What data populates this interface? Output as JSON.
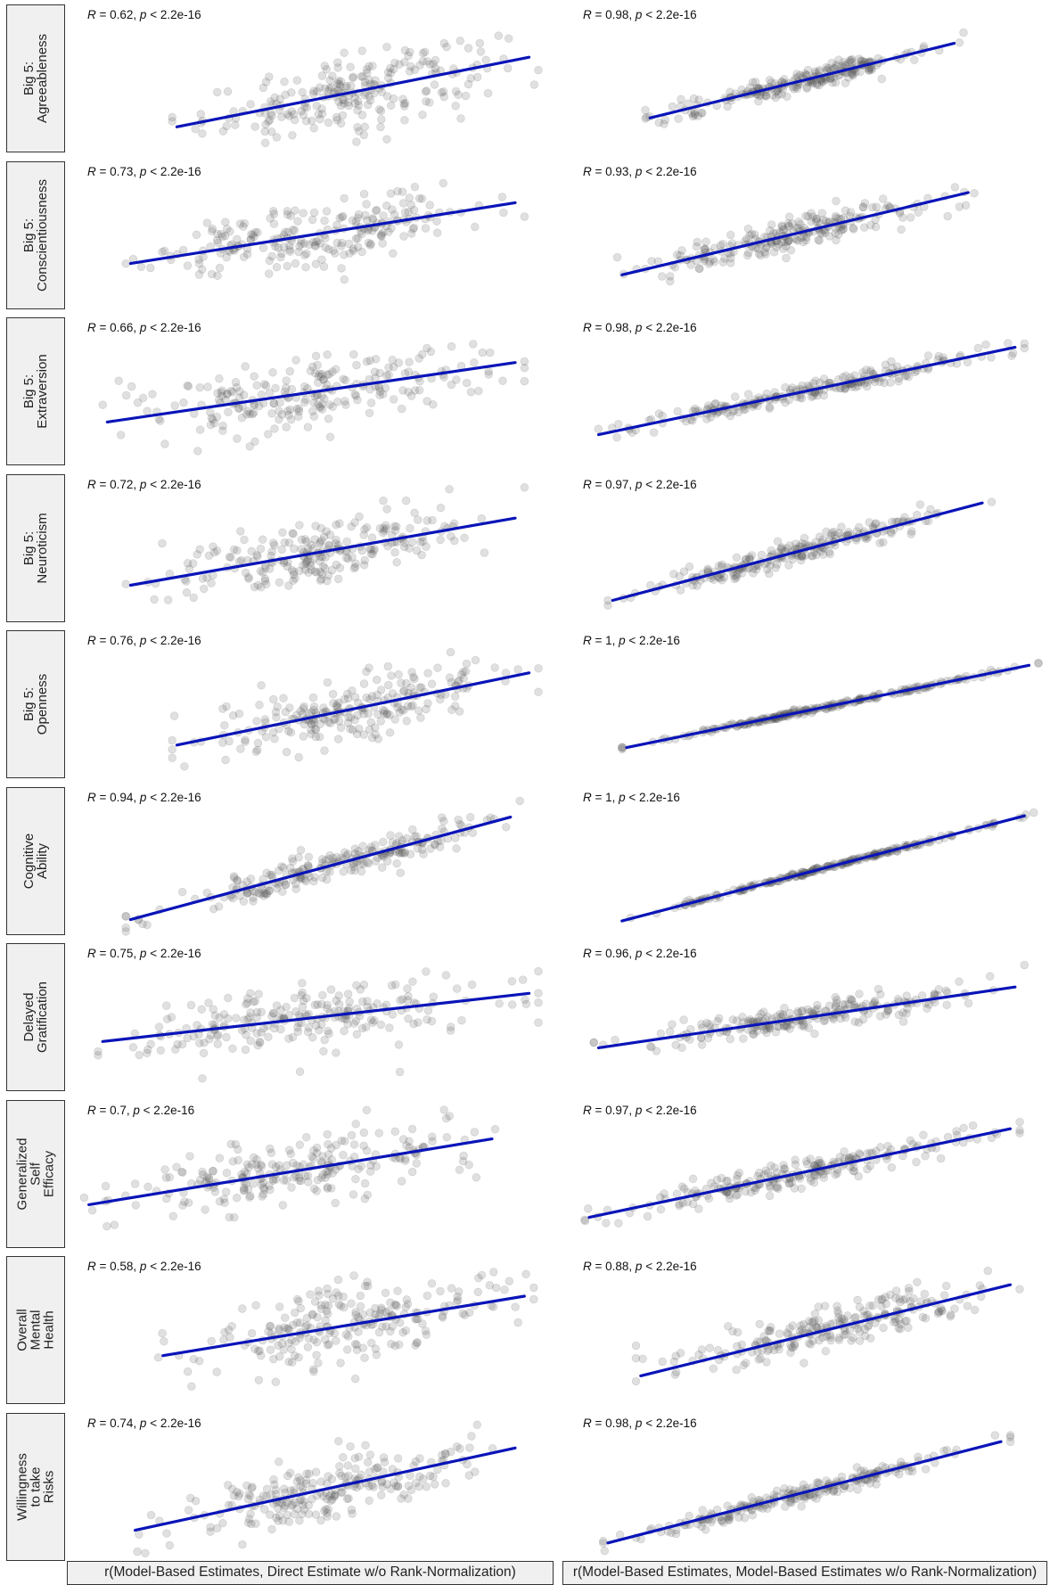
{
  "columns": [
    "r(Model-Based Estimates, Direct Estimate w/o Rank-Normalization)",
    "r(Model-Based Estimates, Model-Based Estimates w/o Rank-Normalization)"
  ],
  "rows": [
    "Big 5:\nAgreeableness",
    "Big 5:\nConscientiousness",
    "Big 5:\nExtraversion",
    "Big 5:\nNeuroticism",
    "Big 5:\nOpenness",
    "Cognitive\nAbility",
    "Delayed\nGratification",
    "Generalized\nSelf\nEfficacy",
    "Overall\nMental\nHealth",
    "Willingness\nto take\nRisks"
  ],
  "colors": {
    "point": "#555555",
    "line": "#0a14b8",
    "strip_bg": "#f0f0f0"
  },
  "chart_data": {
    "type": "scatter",
    "facets": [
      {
        "row": "Big 5:\nAgreeableness",
        "col": 1,
        "R": "0.62",
        "p": "2.2e-16",
        "r": 0.62,
        "line": [
          [
            0.22,
            0.16
          ],
          [
            0.98,
            0.71
          ]
        ]
      },
      {
        "row": "Big 5:\nAgreeableness",
        "col": 2,
        "R": "0.98",
        "p": "2.2e-16",
        "r": 0.98,
        "line": [
          [
            0.17,
            0.23
          ],
          [
            0.82,
            0.82
          ]
        ]
      },
      {
        "row": "Big 5:\nConscientiousness",
        "col": 1,
        "R": "0.73",
        "p": "2.2e-16",
        "r": 0.73,
        "line": [
          [
            0.12,
            0.32
          ],
          [
            0.95,
            0.8
          ]
        ]
      },
      {
        "row": "Big 5:\nConscientiousness",
        "col": 2,
        "R": "0.93",
        "p": "2.2e-16",
        "r": 0.93,
        "line": [
          [
            0.11,
            0.23
          ],
          [
            0.85,
            0.88
          ]
        ]
      },
      {
        "row": "Big 5:\nExtraversion",
        "col": 1,
        "R": "0.66",
        "p": "2.2e-16",
        "r": 0.66,
        "line": [
          [
            0.07,
            0.3
          ],
          [
            0.95,
            0.77
          ]
        ]
      },
      {
        "row": "Big 5:\nExtraversion",
        "col": 2,
        "R": "0.98",
        "p": "2.2e-16",
        "r": 0.98,
        "line": [
          [
            0.06,
            0.2
          ],
          [
            0.95,
            0.89
          ]
        ]
      },
      {
        "row": "Big 5:\nNeuroticism",
        "col": 1,
        "R": "0.72",
        "p": "2.2e-16",
        "r": 0.72,
        "line": [
          [
            0.12,
            0.25
          ],
          [
            0.95,
            0.78
          ]
        ]
      },
      {
        "row": "Big 5:\nNeuroticism",
        "col": 2,
        "R": "0.97",
        "p": "2.2e-16",
        "r": 0.97,
        "line": [
          [
            0.09,
            0.13
          ],
          [
            0.88,
            0.9
          ]
        ]
      },
      {
        "row": "Big 5:\nOpenness",
        "col": 1,
        "R": "0.76",
        "p": "2.2e-16",
        "r": 0.76,
        "line": [
          [
            0.22,
            0.22
          ],
          [
            0.98,
            0.79
          ]
        ]
      },
      {
        "row": "Big 5:\nOpenness",
        "col": 2,
        "R": "1",
        "p": "2.2e-16",
        "r": 1.0,
        "line": [
          [
            0.12,
            0.2
          ],
          [
            0.98,
            0.85
          ]
        ]
      },
      {
        "row": "Cognitive\nAbility",
        "col": 1,
        "R": "0.94",
        "p": "2.2e-16",
        "r": 0.94,
        "line": [
          [
            0.12,
            0.08
          ],
          [
            0.94,
            0.89
          ]
        ]
      },
      {
        "row": "Cognitive\nAbility",
        "col": 2,
        "R": "1",
        "p": "2.2e-16",
        "r": 1.0,
        "line": [
          [
            0.11,
            0.07
          ],
          [
            0.97,
            0.9
          ]
        ]
      },
      {
        "row": "Delayed\nGratification",
        "col": 1,
        "R": "0.75",
        "p": "2.2e-16",
        "r": 0.75,
        "line": [
          [
            0.06,
            0.35
          ],
          [
            0.98,
            0.73
          ]
        ]
      },
      {
        "row": "Delayed\nGratification",
        "col": 2,
        "R": "0.96",
        "p": "2.2e-16",
        "r": 0.96,
        "line": [
          [
            0.06,
            0.3
          ],
          [
            0.95,
            0.78
          ]
        ]
      },
      {
        "row": "Generalized\nSelf\nEfficacy",
        "col": 1,
        "R": "0.7",
        "p": "2.2e-16",
        "r": 0.7,
        "line": [
          [
            0.03,
            0.3
          ],
          [
            0.9,
            0.82
          ]
        ]
      },
      {
        "row": "Generalized\nSelf\nEfficacy",
        "col": 2,
        "R": "0.97",
        "p": "2.2e-16",
        "r": 0.97,
        "line": [
          [
            0.04,
            0.2
          ],
          [
            0.94,
            0.9
          ]
        ]
      },
      {
        "row": "Overall\nMental\nHealth",
        "col": 1,
        "R": "0.58",
        "p": "2.2e-16",
        "r": 0.58,
        "line": [
          [
            0.19,
            0.34
          ],
          [
            0.97,
            0.81
          ]
        ]
      },
      {
        "row": "Overall\nMental\nHealth",
        "col": 2,
        "R": "0.88",
        "p": "2.2e-16",
        "r": 0.88,
        "line": [
          [
            0.15,
            0.18
          ],
          [
            0.94,
            0.9
          ]
        ]
      },
      {
        "row": "Willingness\nto take\nRisks",
        "col": 1,
        "R": "0.74",
        "p": "2.2e-16",
        "r": 0.74,
        "line": [
          [
            0.13,
            0.2
          ],
          [
            0.95,
            0.85
          ]
        ]
      },
      {
        "row": "Willingness\nto take\nRisks",
        "col": 2,
        "R": "0.98",
        "p": "2.2e-16",
        "r": 0.98,
        "line": [
          [
            0.08,
            0.1
          ],
          [
            0.92,
            0.9
          ]
        ]
      }
    ]
  }
}
